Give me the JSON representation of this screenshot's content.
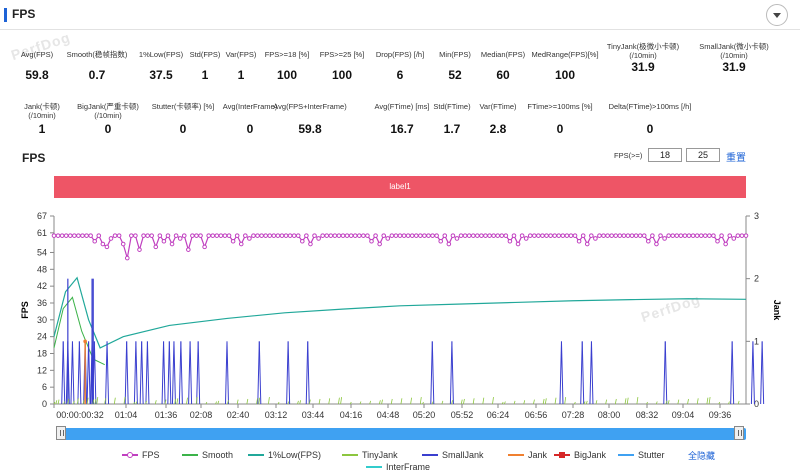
{
  "header": {
    "title": "FPS"
  },
  "watermark": "PerfDog",
  "stats_row1": [
    {
      "label": "Avg(FPS)",
      "value": "59.8"
    },
    {
      "label": "Smooth(稳帧指数)",
      "value": "0.7"
    },
    {
      "label": "1%Low(FPS)",
      "value": "37.5"
    },
    {
      "label": "Std(FPS)",
      "value": "1"
    },
    {
      "label": "Var(FPS)",
      "value": "1"
    },
    {
      "label": "FPS>=18 [%]",
      "value": "100"
    },
    {
      "label": "FPS>=25 [%]",
      "value": "100"
    },
    {
      "label": "Drop(FPS) [/h]",
      "value": "6"
    },
    {
      "label": "Min(FPS)",
      "value": "52"
    },
    {
      "label": "Median(FPS)",
      "value": "60"
    },
    {
      "label": "MedRange(FPS)[%]",
      "value": "100"
    },
    {
      "label": "TinyJank(极微小卡顿)",
      "label2": "(/10min)",
      "value": "31.9"
    },
    {
      "label": "SmallJank(微小卡顿)",
      "label2": "(/10min)",
      "value": "31.9"
    }
  ],
  "stats_row2": [
    {
      "label": "Jank(卡顿)",
      "label2": "(/10min)",
      "value": "1"
    },
    {
      "label": "BigJank(严重卡顿)",
      "label2": "(/10min)",
      "value": "0"
    },
    {
      "label": "Stutter(卡顿率) [%]",
      "value": "0"
    },
    {
      "label": "Avg(InterFrame)",
      "value": "0"
    },
    {
      "label": "Avg(FPS+InterFrame)",
      "value": "59.8"
    },
    {
      "label": "Avg(FTime) [ms]",
      "value": "16.7"
    },
    {
      "label": "Std(FTime)",
      "value": "1.7"
    },
    {
      "label": "Var(FTime)",
      "value": "2.8"
    },
    {
      "label": "FTime>=100ms [%]",
      "value": "0"
    },
    {
      "label": "Delta(FTime)>100ms [/h]",
      "value": "0"
    }
  ],
  "chart_header": {
    "title": "FPS",
    "fps_threshold_label": "FPS(>=)",
    "threshold1": "18",
    "threshold2": "25",
    "reset_label": "重置"
  },
  "label_bar": {
    "text": "label1",
    "color": "#ee5566"
  },
  "legend": {
    "items": [
      {
        "name": "FPS",
        "color": "#c040c0",
        "marker": "dot"
      },
      {
        "name": "Smooth",
        "color": "#3cb34a",
        "marker": "line"
      },
      {
        "name": "1%Low(FPS)",
        "color": "#21a89a",
        "marker": "line"
      },
      {
        "name": "TinyJank",
        "color": "#8cc63f",
        "marker": "line"
      },
      {
        "name": "SmallJank",
        "color": "#3a3fcf",
        "marker": "line"
      },
      {
        "name": "Jank",
        "color": "#f08030",
        "marker": "line"
      },
      {
        "name": "BigJank",
        "color": "#d62728",
        "marker": "square"
      },
      {
        "name": "Stutter",
        "color": "#3fa1f2",
        "marker": "line"
      }
    ],
    "row2": {
      "name": "InterFrame",
      "color": "#33cccc",
      "marker": "line"
    },
    "hide_all": "全隐藏"
  },
  "chart_data": {
    "type": "line",
    "ylabel": "FPS",
    "y2label": "Jank",
    "yticks": [
      0,
      6,
      12,
      18,
      24,
      30,
      36,
      42,
      48,
      54,
      61,
      67
    ],
    "y2ticks": [
      0,
      1,
      2,
      3
    ],
    "ylim": [
      0,
      67
    ],
    "y2lim": [
      0,
      3
    ],
    "xlim_seconds": [
      0,
      600
    ],
    "xticks": [
      "00:00:00:32",
      "01:04",
      "01:36",
      "02:08",
      "02:40",
      "03:12",
      "03:44",
      "04:16",
      "04:48",
      "05:20",
      "05:52",
      "06:24",
      "06:56",
      "07:28",
      "08:00",
      "08:32",
      "09:04",
      "09:36"
    ],
    "series": [
      {
        "name": "FPS",
        "approx": "≈60 constant with dips to 52–58",
        "values_sample": [
          58,
          60,
          60,
          59,
          60,
          57,
          60,
          60,
          58,
          60,
          60,
          60,
          56,
          60,
          60,
          59,
          60,
          60,
          60,
          58
        ]
      },
      {
        "name": "1%Low(FPS)",
        "x": [
          0,
          10,
          20,
          30,
          40,
          60,
          100,
          150,
          200,
          250,
          300,
          350,
          400,
          450,
          500,
          550,
          600
        ],
        "values": [
          24,
          40,
          45,
          30,
          20,
          24,
          28,
          30.5,
          32.5,
          33.8,
          35,
          35.6,
          36.2,
          36.8,
          37.2,
          37.5,
          37.3
        ]
      },
      {
        "name": "SmallJank",
        "x_seconds": [
          8,
          12,
          16,
          22,
          27,
          30,
          33,
          35,
          46,
          63,
          71,
          76,
          81,
          95,
          100,
          104,
          110,
          118,
          125,
          150,
          178,
          203,
          220,
          328,
          345,
          440,
          458,
          466,
          530,
          588,
          606,
          614
        ],
        "value": 1
      },
      {
        "name": "Jank",
        "x_seconds": [
          27
        ],
        "value": 1
      },
      {
        "name": "TinyJank",
        "approx": "sparse small spikes 0–0.1"
      }
    ]
  }
}
